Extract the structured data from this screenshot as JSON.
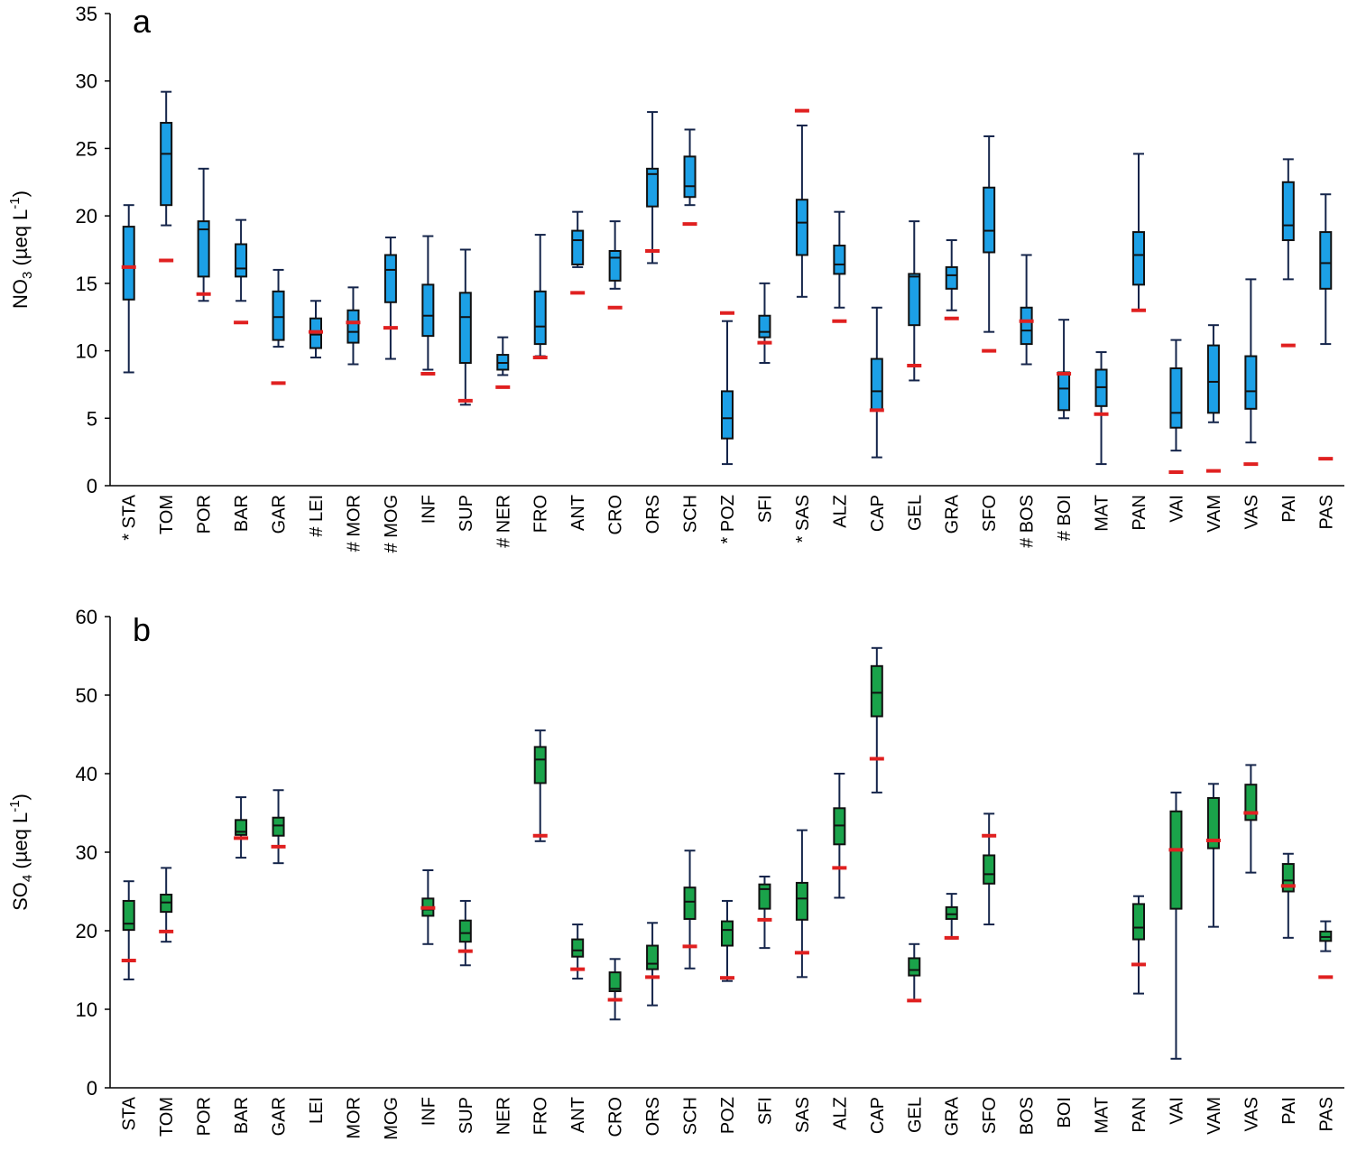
{
  "chart_data": [
    {
      "type": "box",
      "panel_label": "a",
      "ylabel": {
        "main": "NO",
        "sub": "3",
        "unit_open": " (µeq L",
        "unit_sup": "-1",
        "unit_close": ")"
      },
      "ylim": [
        0,
        35
      ],
      "yticks": [
        0,
        5,
        10,
        15,
        20,
        25,
        30,
        35
      ],
      "grid": false,
      "box_color": "#1ca0e6",
      "marker_color": "#e02020",
      "categories": [
        "STA",
        "TOM",
        "POR",
        "BAR",
        "GAR",
        "LEI",
        "MOR",
        "MOG",
        "INF",
        "SUP",
        "NER",
        "FRO",
        "ANT",
        "CRO",
        "ORS",
        "SCH",
        "POZ",
        "SFI",
        "SAS",
        "ALZ",
        "CAP",
        "GEL",
        "GRA",
        "SFO",
        "BOS",
        "BOI",
        "MAT",
        "PAN",
        "VAI",
        "VAM",
        "VAS",
        "PAI",
        "PAS"
      ],
      "prefixes": [
        "*",
        "",
        "",
        "",
        "",
        "#",
        "#",
        "#",
        "",
        "",
        "#",
        "",
        "",
        "",
        "",
        "",
        "*",
        "",
        "*",
        "",
        "",
        "",
        "",
        "",
        "#",
        "#",
        "",
        "",
        "",
        "",
        "",
        "",
        ""
      ],
      "boxes": [
        {
          "min": 8.4,
          "q1": 13.8,
          "median": 16.2,
          "q3": 19.2,
          "max": 20.8,
          "marker": 16.2
        },
        {
          "min": 19.3,
          "q1": 20.8,
          "median": 24.6,
          "q3": 26.9,
          "max": 29.2,
          "marker": 16.7
        },
        {
          "min": 13.7,
          "q1": 15.5,
          "median": 19.0,
          "q3": 19.6,
          "max": 23.5,
          "marker": 14.2
        },
        {
          "min": 13.7,
          "q1": 15.5,
          "median": 16.1,
          "q3": 17.9,
          "max": 19.7,
          "marker": 12.1
        },
        {
          "min": 10.3,
          "q1": 10.8,
          "median": 12.5,
          "q3": 14.4,
          "max": 16.0,
          "marker": 7.6
        },
        {
          "min": 9.5,
          "q1": 10.2,
          "median": 11.2,
          "q3": 12.4,
          "max": 13.7,
          "marker": 11.4
        },
        {
          "min": 9.0,
          "q1": 10.6,
          "median": 11.4,
          "q3": 13.0,
          "max": 14.7,
          "marker": 12.1
        },
        {
          "min": 9.4,
          "q1": 13.6,
          "median": 16.0,
          "q3": 17.1,
          "max": 18.4,
          "marker": 11.7
        },
        {
          "min": 8.6,
          "q1": 11.1,
          "median": 12.6,
          "q3": 14.9,
          "max": 18.5,
          "marker": 8.3
        },
        {
          "min": 6.0,
          "q1": 9.1,
          "median": 12.5,
          "q3": 14.3,
          "max": 17.5,
          "marker": 6.3
        },
        {
          "min": 8.2,
          "q1": 8.6,
          "median": 9.1,
          "q3": 9.7,
          "max": 11.0,
          "marker": 7.3
        },
        {
          "min": 9.6,
          "q1": 10.5,
          "median": 11.8,
          "q3": 14.4,
          "max": 18.6,
          "marker": 9.5
        },
        {
          "min": 16.2,
          "q1": 16.4,
          "median": 18.2,
          "q3": 18.9,
          "max": 20.3,
          "marker": 14.3
        },
        {
          "min": 14.6,
          "q1": 15.2,
          "median": 16.9,
          "q3": 17.4,
          "max": 19.6,
          "marker": 13.2
        },
        {
          "min": 16.5,
          "q1": 20.7,
          "median": 23.1,
          "q3": 23.5,
          "max": 27.7,
          "marker": 17.4
        },
        {
          "min": 20.8,
          "q1": 21.4,
          "median": 22.2,
          "q3": 24.4,
          "max": 26.4,
          "marker": 19.4
        },
        {
          "min": 1.6,
          "q1": 3.5,
          "median": 5.0,
          "q3": 7.0,
          "max": 12.2,
          "marker": 12.8
        },
        {
          "min": 9.1,
          "q1": 11.0,
          "median": 11.4,
          "q3": 12.6,
          "max": 15.0,
          "marker": 10.6
        },
        {
          "min": 14.0,
          "q1": 17.1,
          "median": 19.5,
          "q3": 21.2,
          "max": 26.7,
          "marker": 27.8
        },
        {
          "min": 13.2,
          "q1": 15.7,
          "median": 16.4,
          "q3": 17.8,
          "max": 20.3,
          "marker": 12.2
        },
        {
          "min": 2.1,
          "q1": 5.6,
          "median": 7.0,
          "q3": 9.4,
          "max": 13.2,
          "marker": 5.6
        },
        {
          "min": 7.8,
          "q1": 11.9,
          "median": 15.5,
          "q3": 15.7,
          "max": 19.6,
          "marker": 8.9
        },
        {
          "min": 13.0,
          "q1": 14.6,
          "median": 15.6,
          "q3": 16.2,
          "max": 18.2,
          "marker": 12.4
        },
        {
          "min": 11.4,
          "q1": 17.3,
          "median": 18.9,
          "q3": 22.1,
          "max": 25.9,
          "marker": 10.0
        },
        {
          "min": 9.0,
          "q1": 10.5,
          "median": 11.5,
          "q3": 13.2,
          "max": 17.1,
          "marker": 12.2
        },
        {
          "min": 5.0,
          "q1": 5.6,
          "median": 7.2,
          "q3": 8.4,
          "max": 12.3,
          "marker": 8.3
        },
        {
          "min": 1.6,
          "q1": 5.9,
          "median": 7.3,
          "q3": 8.6,
          "max": 9.9,
          "marker": 5.3
        },
        {
          "min": 13.0,
          "q1": 14.9,
          "median": 17.1,
          "q3": 18.8,
          "max": 24.6,
          "marker": 13.0
        },
        {
          "min": 2.6,
          "q1": 4.3,
          "median": 5.4,
          "q3": 8.7,
          "max": 10.8,
          "marker": 1.0
        },
        {
          "min": 4.7,
          "q1": 5.4,
          "median": 7.7,
          "q3": 10.4,
          "max": 11.9,
          "marker": 1.1
        },
        {
          "min": 3.2,
          "q1": 5.7,
          "median": 7.0,
          "q3": 9.6,
          "max": 15.3,
          "marker": 1.6
        },
        {
          "min": 15.3,
          "q1": 18.2,
          "median": 19.3,
          "q3": 22.5,
          "max": 24.2,
          "marker": 10.4
        },
        {
          "min": 10.5,
          "q1": 14.6,
          "median": 16.5,
          "q3": 18.8,
          "max": 21.6,
          "marker": 2.0
        }
      ]
    },
    {
      "type": "box",
      "panel_label": "b",
      "ylabel": {
        "main": "SO",
        "sub": "4",
        "unit_open": " (µeq L",
        "unit_sup": "-1",
        "unit_close": ")"
      },
      "ylim": [
        0,
        60
      ],
      "yticks": [
        0,
        10,
        20,
        30,
        40,
        50,
        60
      ],
      "grid": false,
      "box_color": "#1aa34a",
      "marker_color": "#e02020",
      "categories": [
        "STA",
        "TOM",
        "POR",
        "BAR",
        "GAR",
        "LEI",
        "MOR",
        "MOG",
        "INF",
        "SUP",
        "NER",
        "FRO",
        "ANT",
        "CRO",
        "ORS",
        "SCH",
        "POZ",
        "SFI",
        "SAS",
        "ALZ",
        "CAP",
        "GEL",
        "GRA",
        "SFO",
        "BOS",
        "BOI",
        "MAT",
        "PAN",
        "VAI",
        "VAM",
        "VAS",
        "PAI",
        "PAS"
      ],
      "prefixes": [
        "",
        "",
        "",
        "",
        "",
        "",
        "",
        "",
        "",
        "",
        "",
        "",
        "",
        "",
        "",
        "",
        "",
        "",
        "",
        "",
        "",
        "",
        "",
        "",
        "",
        "",
        "",
        "",
        "",
        "",
        "",
        "",
        ""
      ],
      "boxes": [
        {
          "min": 13.8,
          "q1": 20.1,
          "median": 20.9,
          "q3": 23.8,
          "max": 26.3,
          "marker": 16.2
        },
        {
          "min": 18.6,
          "q1": 22.4,
          "median": 23.6,
          "q3": 24.6,
          "max": 28.0,
          "marker": 19.9
        },
        null,
        {
          "min": 29.3,
          "q1": 32.2,
          "median": 32.6,
          "q3": 34.1,
          "max": 37.0,
          "marker": 31.8
        },
        {
          "min": 28.6,
          "q1": 32.1,
          "median": 33.4,
          "q3": 34.4,
          "max": 37.9,
          "marker": 30.7
        },
        null,
        null,
        null,
        {
          "min": 18.3,
          "q1": 21.9,
          "median": 22.7,
          "q3": 24.1,
          "max": 27.7,
          "marker": 22.9
        },
        {
          "min": 15.6,
          "q1": 18.6,
          "median": 19.7,
          "q3": 21.3,
          "max": 23.8,
          "marker": 17.4
        },
        null,
        {
          "min": 31.4,
          "q1": 38.8,
          "median": 41.8,
          "q3": 43.4,
          "max": 45.5,
          "marker": 32.1
        },
        {
          "min": 13.9,
          "q1": 16.7,
          "median": 17.5,
          "q3": 18.9,
          "max": 20.8,
          "marker": 15.1
        },
        {
          "min": 8.7,
          "q1": 12.3,
          "median": 12.6,
          "q3": 14.7,
          "max": 16.4,
          "marker": 11.2
        },
        {
          "min": 10.5,
          "q1": 15.1,
          "median": 15.8,
          "q3": 18.1,
          "max": 21.0,
          "marker": 14.1
        },
        {
          "min": 15.2,
          "q1": 21.5,
          "median": 23.7,
          "q3": 25.5,
          "max": 30.2,
          "marker": 18.0
        },
        {
          "min": 13.6,
          "q1": 18.1,
          "median": 20.1,
          "q3": 21.2,
          "max": 23.8,
          "marker": 14.0
        },
        {
          "min": 17.8,
          "q1": 22.8,
          "median": 25.3,
          "q3": 25.9,
          "max": 26.9,
          "marker": 21.4
        },
        {
          "min": 14.1,
          "q1": 21.4,
          "median": 24.1,
          "q3": 26.1,
          "max": 32.8,
          "marker": 17.2
        },
        {
          "min": 24.2,
          "q1": 31.0,
          "median": 33.4,
          "q3": 35.6,
          "max": 40.0,
          "marker": 28.0
        },
        {
          "min": 37.6,
          "q1": 47.3,
          "median": 50.3,
          "q3": 53.7,
          "max": 56.0,
          "marker": 41.9
        },
        {
          "min": 11.1,
          "q1": 14.3,
          "median": 15.0,
          "q3": 16.5,
          "max": 18.3,
          "marker": 11.1
        },
        {
          "min": 19.0,
          "q1": 21.5,
          "median": 22.1,
          "q3": 23.0,
          "max": 24.7,
          "marker": 19.1
        },
        {
          "min": 20.8,
          "q1": 26.0,
          "median": 27.2,
          "q3": 29.6,
          "max": 34.9,
          "marker": 32.1
        },
        null,
        null,
        null,
        {
          "min": 12.0,
          "q1": 18.9,
          "median": 20.4,
          "q3": 23.4,
          "max": 24.4,
          "marker": 15.7
        },
        {
          "min": 3.7,
          "q1": 22.8,
          "median": 30.4,
          "q3": 35.2,
          "max": 37.6,
          "marker": 30.3
        },
        {
          "min": 20.5,
          "q1": 30.5,
          "median": 31.5,
          "q3": 36.9,
          "max": 38.7,
          "marker": 31.5
        },
        {
          "min": 27.4,
          "q1": 34.1,
          "median": 35.0,
          "q3": 38.6,
          "max": 41.1,
          "marker": 35.0
        },
        {
          "min": 19.1,
          "q1": 25.0,
          "median": 26.4,
          "q3": 28.5,
          "max": 29.8,
          "marker": 25.7
        },
        {
          "min": 17.4,
          "q1": 18.7,
          "median": 19.2,
          "q3": 19.9,
          "max": 21.2,
          "marker": 14.1
        }
      ]
    }
  ]
}
